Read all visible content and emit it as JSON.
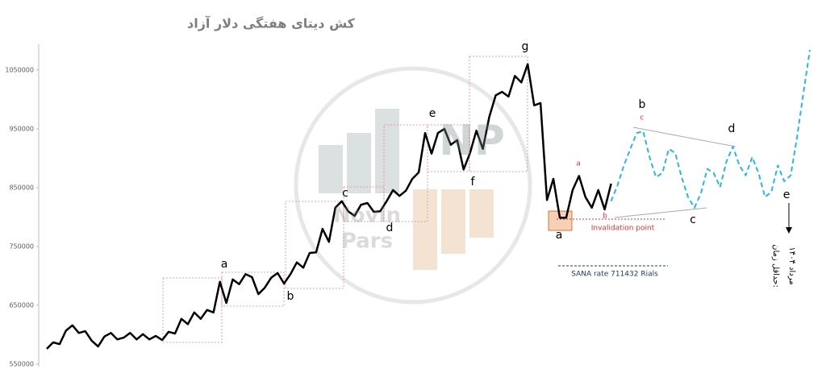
{
  "chart_data": {
    "type": "line",
    "title": "کش دیتای هفتگی دلار آزاد",
    "x": [
      0,
      1,
      2,
      3,
      4,
      5,
      6,
      7,
      8,
      9,
      10,
      11,
      12,
      13,
      14,
      15,
      16,
      17,
      18,
      19,
      20,
      21,
      22,
      23,
      24,
      25,
      26,
      27,
      28,
      29,
      30,
      31,
      32,
      33,
      34,
      35,
      36,
      37,
      38,
      39,
      40,
      41,
      42,
      43,
      44,
      45,
      46,
      47,
      48,
      49,
      50,
      51,
      52,
      53,
      54,
      55,
      56,
      57,
      58,
      59,
      60,
      61,
      62,
      63,
      64,
      65,
      66,
      67,
      68,
      69,
      70,
      71,
      72,
      73,
      74,
      75,
      76,
      77,
      78,
      79,
      80,
      81,
      82,
      83,
      84,
      85,
      86,
      87,
      88,
      89,
      90,
      91,
      92,
      93,
      94,
      95,
      96,
      97,
      98,
      99,
      100,
      101,
      102,
      103,
      104,
      105,
      106,
      107,
      108,
      109,
      110,
      111,
      112,
      113,
      114,
      115,
      116,
      117,
      118,
      119
    ],
    "xlim": [
      0,
      119
    ],
    "ylim": [
      550000,
      1100000
    ],
    "yticks": [
      550000,
      650000,
      750000,
      850000,
      950000,
      1050000
    ],
    "series": [
      {
        "color": "#000000",
        "values": [
          576000,
          587000,
          584000,
          607000,
          616000,
          603000,
          606000,
          590000,
          580000,
          597000,
          603000,
          592000,
          595000,
          603000,
          592000,
          601000,
          592000,
          598000,
          591000,
          605000,
          602000,
          627000,
          618000,
          638000,
          627000,
          642000,
          638000,
          690000,
          654000,
          694000,
          686000,
          703000,
          698000,
          669000,
          680000,
          697000,
          705000,
          687000,
          703000,
          723000,
          714000,
          739000,
          740000,
          780000,
          758000,
          816000,
          827000,
          810000,
          802000,
          821000,
          824000,
          809000,
          810000,
          827000,
          846000,
          836000,
          845000,
          865000,
          876000,
          943000,
          908000,
          943000,
          950000,
          923000,
          931000,
          881000,
          909000,
          947000,
          916000,
          970000,
          1007000,
          1013000,
          1005000,
          1040000,
          1029000,
          1060000,
          990000,
          994000,
          829000,
          865000,
          799000,
          799000,
          846000,
          870000,
          834000,
          816000,
          846000,
          813000,
          857000,
          null,
          null,
          null,
          null,
          null,
          null,
          null,
          null,
          null,
          null,
          null,
          null,
          null,
          null,
          null,
          null,
          null,
          null,
          null,
          null,
          null,
          null,
          null,
          null,
          null,
          null,
          null,
          null,
          null,
          null,
          null
        ]
      },
      {
        "color": "#29b6e6",
        "dashed": true,
        "values": [
          null,
          null,
          null,
          null,
          null,
          null,
          null,
          null,
          null,
          null,
          null,
          null,
          null,
          null,
          null,
          null,
          null,
          null,
          null,
          null,
          null,
          null,
          null,
          null,
          null,
          null,
          null,
          null,
          null,
          null,
          null,
          null,
          null,
          null,
          null,
          null,
          null,
          null,
          null,
          null,
          null,
          null,
          null,
          null,
          null,
          null,
          null,
          null,
          null,
          null,
          null,
          null,
          null,
          null,
          null,
          null,
          null,
          null,
          null,
          null,
          null,
          null,
          null,
          null,
          null,
          null,
          null,
          null,
          null,
          null,
          null,
          null,
          null,
          null,
          null,
          null,
          null,
          null,
          null,
          null,
          null,
          null,
          null,
          null,
          null,
          null,
          null,
          null,
          827000,
          854000,
          888000,
          916000,
          943000,
          946000,
          902000,
          868000,
          875000,
          916000,
          909000,
          868000,
          834000,
          816000,
          840000,
          882000,
          875000,
          851000,
          895000,
          920000,
          888000,
          871000,
          902000,
          875000,
          834000,
          843000,
          888000,
          861000,
          871000,
          936000,
          1012000,
          1084000
        ]
      }
    ],
    "annotations": [
      "a",
      "b",
      "c",
      "d",
      "e",
      "f",
      "g",
      "a",
      "a",
      "b",
      "c",
      "b",
      "d",
      "c",
      "e",
      "Invalidation point",
      "SANA rate 711432 Rials",
      "حداقل زمان:",
      "مرداد ۱۴۰۴",
      "NP",
      "Novin",
      "Pars"
    ]
  }
}
